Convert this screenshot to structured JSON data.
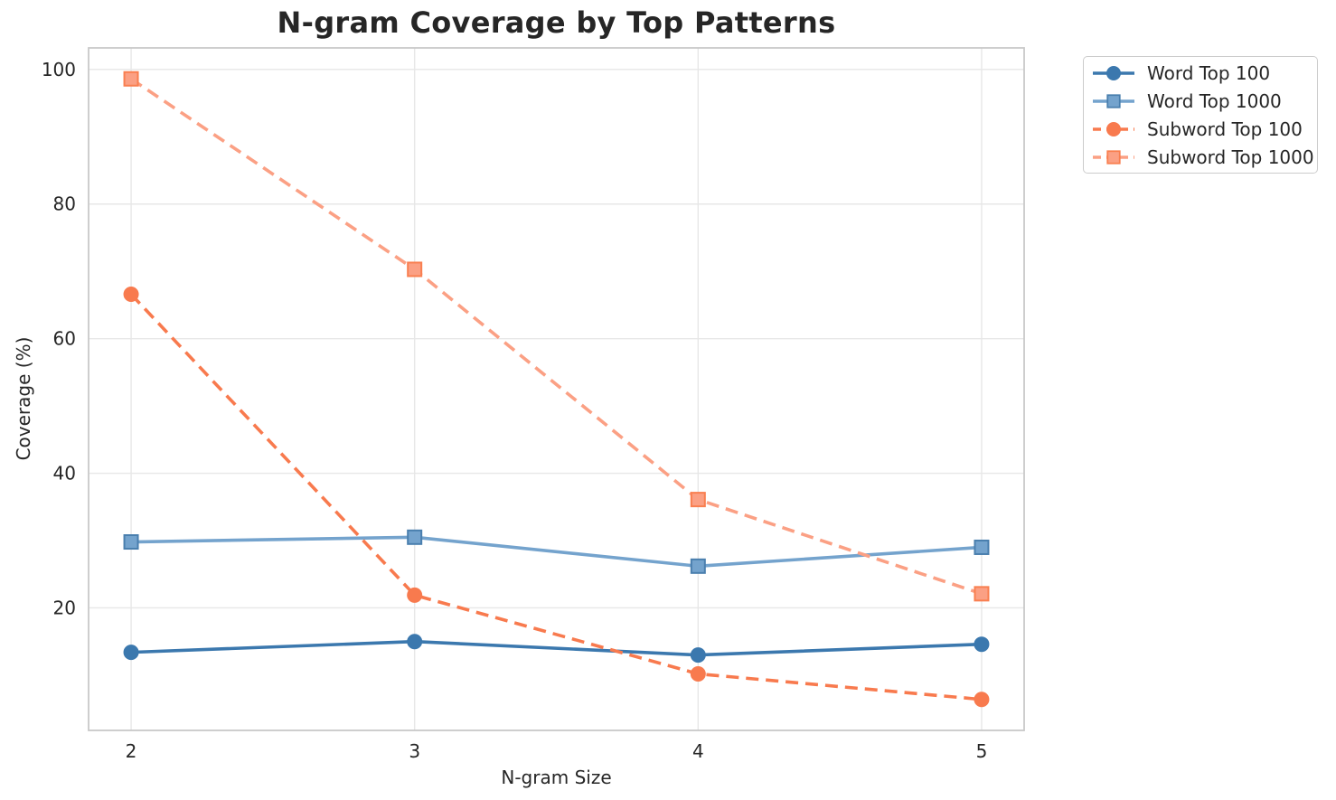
{
  "chart_data": {
    "type": "line",
    "title": "N-gram Coverage by Top Patterns",
    "xlabel": "N-gram Size",
    "ylabel": "Coverage (%)",
    "x": [
      2,
      3,
      4,
      5
    ],
    "x_ticks": [
      2,
      3,
      4,
      5
    ],
    "y_ticks": [
      20,
      40,
      60,
      80,
      100
    ],
    "xlim": [
      1.85,
      5.15
    ],
    "ylim": [
      1.8,
      103.2
    ],
    "grid": true,
    "legend_position": "outside-upper-right",
    "colors": {
      "grid": "#e7e7e7",
      "spine": "#c9c9c9",
      "text": "#262626",
      "background": "#ffffff"
    },
    "series": [
      {
        "name": "Word Top 100",
        "values": [
          13.4,
          15.0,
          13.0,
          14.6
        ],
        "color": "#3b78ae",
        "marker_edge_color": "#3b78ae",
        "line_style": "solid",
        "marker": "circle"
      },
      {
        "name": "Word Top 1000",
        "values": [
          29.8,
          30.5,
          26.2,
          29.0
        ],
        "color": "#74a3cd",
        "marker_edge_color": "#4a7fae",
        "line_style": "solid",
        "marker": "square"
      },
      {
        "name": "Subword Top 100",
        "values": [
          66.6,
          21.9,
          10.2,
          6.4
        ],
        "color": "#f87a4e",
        "marker_edge_color": "#f87a4e",
        "line_style": "dashed",
        "marker": "circle"
      },
      {
        "name": "Subword Top 1000",
        "values": [
          98.6,
          70.3,
          36.1,
          22.1
        ],
        "color": "#fba084",
        "marker_edge_color": "#f97f50",
        "line_style": "dashed",
        "marker": "square"
      }
    ]
  }
}
